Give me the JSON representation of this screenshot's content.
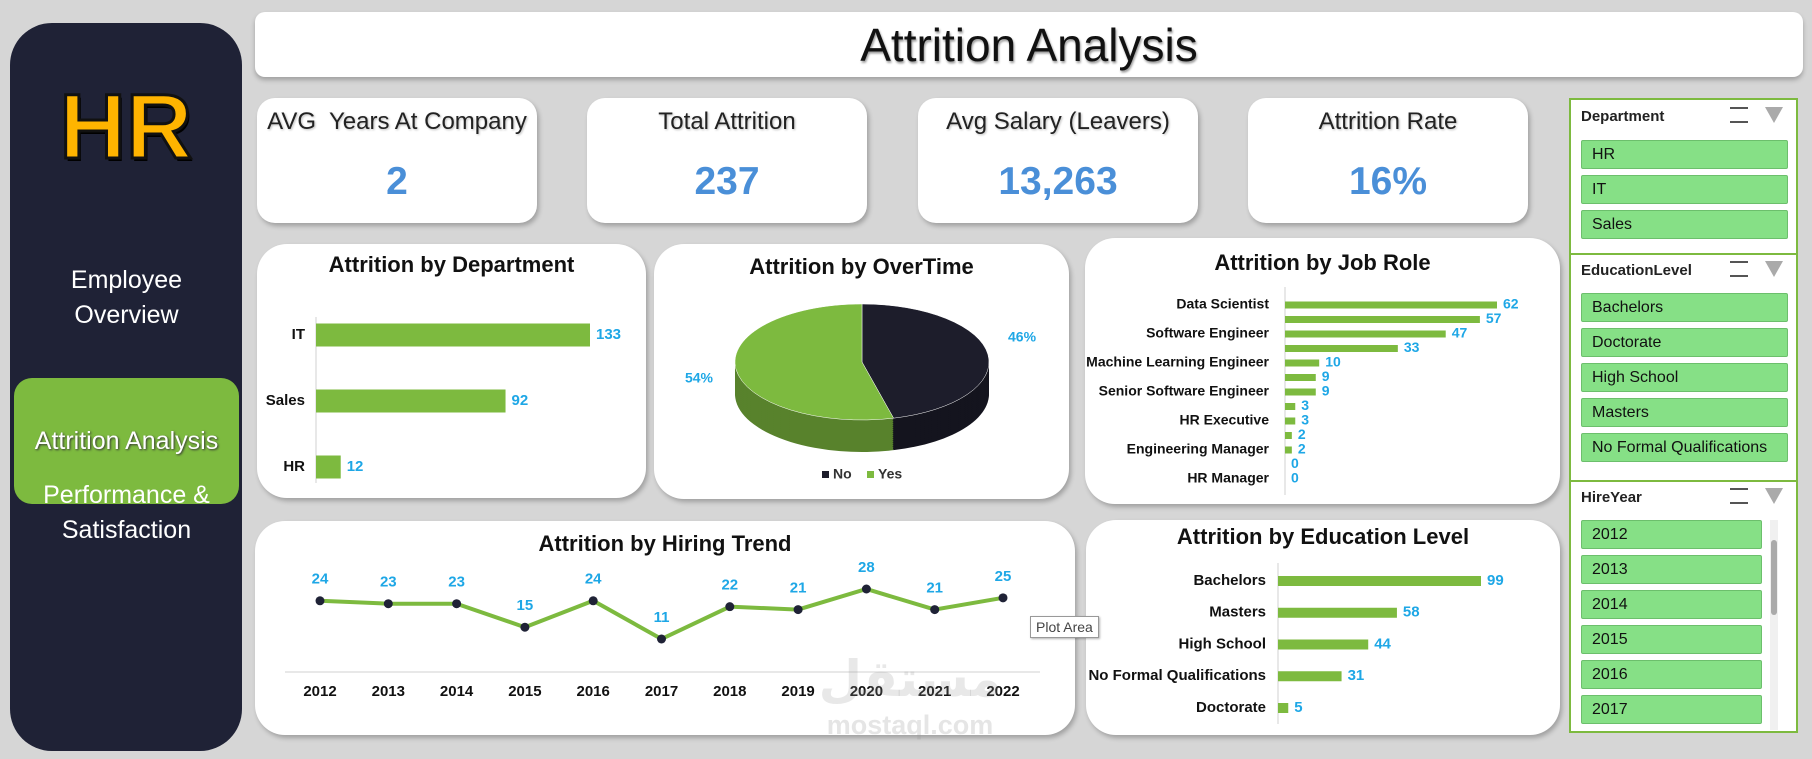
{
  "sidebar": {
    "logo": "HR",
    "nav": [
      "Employee Overview",
      "Attrition Analysis",
      "Performance & Satisfaction"
    ]
  },
  "header": {
    "title": "Attrition Analysis"
  },
  "kpis": [
    {
      "label": "AVG  Years At Company",
      "value": "2"
    },
    {
      "label": "Total Attrition",
      "value": "237"
    },
    {
      "label": "Avg Salary (Leavers)",
      "value": "13,263"
    },
    {
      "label": "Attrition Rate",
      "value": "16%"
    }
  ],
  "chart_data": [
    {
      "type": "bar",
      "title": "Attrition by Department",
      "categories": [
        "IT",
        "Sales",
        "HR"
      ],
      "values": [
        133,
        92,
        12
      ],
      "color": "#7dba3f"
    },
    {
      "type": "pie",
      "title": "Attrition by OverTime",
      "categories": [
        "No",
        "Yes"
      ],
      "values": [
        46,
        54
      ],
      "value_labels": [
        "46%",
        "54%"
      ],
      "colors": [
        "#1d1d2b",
        "#7dba3f"
      ],
      "legend": "bottom"
    },
    {
      "type": "bar",
      "title": "Attrition by Job Role",
      "categories": [
        "Data Scientist",
        null,
        "Software Engineer",
        null,
        "Machine Learning Engineer",
        null,
        "Senior Software Engineer",
        null,
        "HR Executive",
        null,
        "Engineering Manager",
        null,
        "HR Manager"
      ],
      "values": [
        62,
        57,
        47,
        33,
        10,
        9,
        9,
        3,
        3,
        2,
        2,
        0,
        0
      ],
      "color": "#7dba3f"
    },
    {
      "type": "line",
      "title": "Attrition by Hiring Trend",
      "categories": [
        "2012",
        "2013",
        "2014",
        "2015",
        "2016",
        "2017",
        "2018",
        "2019",
        "2020",
        "2021",
        "2022"
      ],
      "values": [
        24,
        23,
        23,
        15,
        24,
        11,
        22,
        21,
        28,
        21,
        25
      ],
      "color": "#7dba3f"
    },
    {
      "type": "bar",
      "title": "Attrition by Education Level",
      "categories": [
        "Bachelors",
        "Masters",
        "High School",
        "No Formal Qualifications",
        "Doctorate"
      ],
      "values": [
        99,
        58,
        44,
        31,
        5
      ],
      "color": "#7dba3f"
    }
  ],
  "slicers": [
    {
      "title": "Department",
      "items": [
        "HR",
        "IT",
        "Sales"
      ]
    },
    {
      "title": "EducationLevel",
      "items": [
        "Bachelors",
        "Doctorate",
        "High School",
        "Masters",
        "No Formal Qualifications"
      ]
    },
    {
      "title": "HireYear",
      "items": [
        "2012",
        "2013",
        "2014",
        "2015",
        "2016",
        "2017"
      ]
    }
  ],
  "tooltip": "Plot Area",
  "watermark": {
    "arabic": "مستقل",
    "latin": "mostaql.com"
  }
}
